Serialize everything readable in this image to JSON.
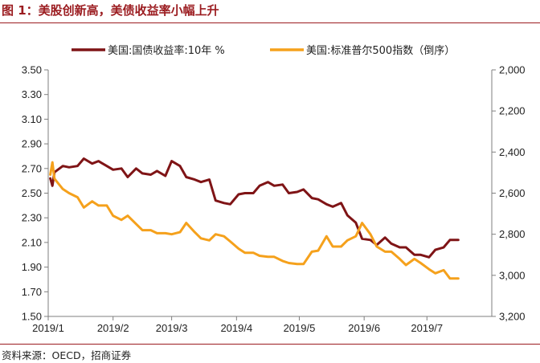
{
  "figure": {
    "title": "图 1：美股创新高，美债收益率小幅上升",
    "source": "资料来源：OECD，招商证券"
  },
  "colors": {
    "accent": "#9b1c20",
    "yield_line": "#7f1416",
    "spx_line": "#f5a11c",
    "axis": "#7f7f7f"
  },
  "chart_data": {
    "type": "line",
    "x_ticks": [
      "2019/1",
      "2019/2",
      "2019/3",
      "2019/4",
      "2019/5",
      "2019/6",
      "2019/7"
    ],
    "y_left": {
      "ylim": [
        1.5,
        3.5
      ],
      "ticks": [
        "3.50",
        "3.30",
        "3.10",
        "2.90",
        "2.70",
        "2.50",
        "2.30",
        "2.10",
        "1.90",
        "1.70",
        "1.50"
      ]
    },
    "y_right": {
      "inverted": true,
      "ylim": [
        2000,
        3200
      ],
      "ticks": [
        "2,000",
        "2,200",
        "2,400",
        "2,600",
        "2,800",
        "3,000",
        "3,200"
      ]
    },
    "series": [
      {
        "name": "美国:国债收益率:10年 %",
        "axis": "left",
        "x": [
          "2019/1/2",
          "2019/1/3",
          "2019/1/4",
          "2019/1/8",
          "2019/1/11",
          "2019/1/15",
          "2019/1/18",
          "2019/1/22",
          "2019/1/25",
          "2019/1/29",
          "2019/2/1",
          "2019/2/5",
          "2019/2/8",
          "2019/2/12",
          "2019/2/15",
          "2019/2/19",
          "2019/2/22",
          "2019/2/26",
          "2019/3/1",
          "2019/3/5",
          "2019/3/8",
          "2019/3/12",
          "2019/3/15",
          "2019/3/19",
          "2019/3/22",
          "2019/3/26",
          "2019/3/29",
          "2019/4/2",
          "2019/4/5",
          "2019/4/9",
          "2019/4/12",
          "2019/4/16",
          "2019/4/19",
          "2019/4/23",
          "2019/4/26",
          "2019/4/30",
          "2019/5/3",
          "2019/5/7",
          "2019/5/10",
          "2019/5/14",
          "2019/5/17",
          "2019/5/21",
          "2019/5/24",
          "2019/5/28",
          "2019/5/31",
          "2019/6/4",
          "2019/6/7",
          "2019/6/11",
          "2019/6/14",
          "2019/6/18",
          "2019/6/21",
          "2019/6/25",
          "2019/6/28",
          "2019/7/2",
          "2019/7/5",
          "2019/7/9",
          "2019/7/12",
          "2019/7/16"
        ],
        "y": [
          2.62,
          2.56,
          2.67,
          2.72,
          2.71,
          2.72,
          2.78,
          2.74,
          2.76,
          2.72,
          2.69,
          2.7,
          2.63,
          2.7,
          2.66,
          2.65,
          2.68,
          2.64,
          2.76,
          2.72,
          2.63,
          2.61,
          2.59,
          2.61,
          2.44,
          2.42,
          2.41,
          2.49,
          2.5,
          2.5,
          2.56,
          2.59,
          2.56,
          2.57,
          2.5,
          2.51,
          2.53,
          2.46,
          2.45,
          2.41,
          2.39,
          2.42,
          2.32,
          2.26,
          2.13,
          2.12,
          2.08,
          2.14,
          2.09,
          2.06,
          2.06,
          2.0,
          2.0,
          1.98,
          2.04,
          2.06,
          2.12,
          2.12
        ]
      },
      {
        "name": "美国:标准普尔500指数（倒序）",
        "axis": "right",
        "x": [
          "2019/1/2",
          "2019/1/3",
          "2019/1/4",
          "2019/1/8",
          "2019/1/11",
          "2019/1/15",
          "2019/1/18",
          "2019/1/22",
          "2019/1/25",
          "2019/1/29",
          "2019/2/1",
          "2019/2/5",
          "2019/2/8",
          "2019/2/12",
          "2019/2/15",
          "2019/2/19",
          "2019/2/22",
          "2019/2/26",
          "2019/3/1",
          "2019/3/5",
          "2019/3/8",
          "2019/3/12",
          "2019/3/15",
          "2019/3/19",
          "2019/3/22",
          "2019/3/26",
          "2019/3/29",
          "2019/4/2",
          "2019/4/5",
          "2019/4/9",
          "2019/4/12",
          "2019/4/16",
          "2019/4/19",
          "2019/4/23",
          "2019/4/26",
          "2019/4/30",
          "2019/5/3",
          "2019/5/7",
          "2019/5/10",
          "2019/5/14",
          "2019/5/17",
          "2019/5/21",
          "2019/5/24",
          "2019/5/28",
          "2019/5/31",
          "2019/6/4",
          "2019/6/7",
          "2019/6/11",
          "2019/6/14",
          "2019/6/18",
          "2019/6/21",
          "2019/6/25",
          "2019/6/28",
          "2019/7/2",
          "2019/7/5",
          "2019/7/9",
          "2019/7/12",
          "2019/7/16"
        ],
        "y": [
          2510,
          2450,
          2530,
          2580,
          2600,
          2620,
          2670,
          2640,
          2660,
          2660,
          2710,
          2730,
          2710,
          2750,
          2780,
          2780,
          2795,
          2795,
          2800,
          2790,
          2745,
          2790,
          2820,
          2830,
          2800,
          2810,
          2835,
          2870,
          2890,
          2890,
          2905,
          2910,
          2910,
          2930,
          2940,
          2945,
          2945,
          2885,
          2880,
          2810,
          2860,
          2860,
          2830,
          2810,
          2745,
          2800,
          2860,
          2885,
          2885,
          2920,
          2950,
          2920,
          2940,
          2970,
          2990,
          2975,
          3015,
          3015
        ]
      }
    ]
  }
}
